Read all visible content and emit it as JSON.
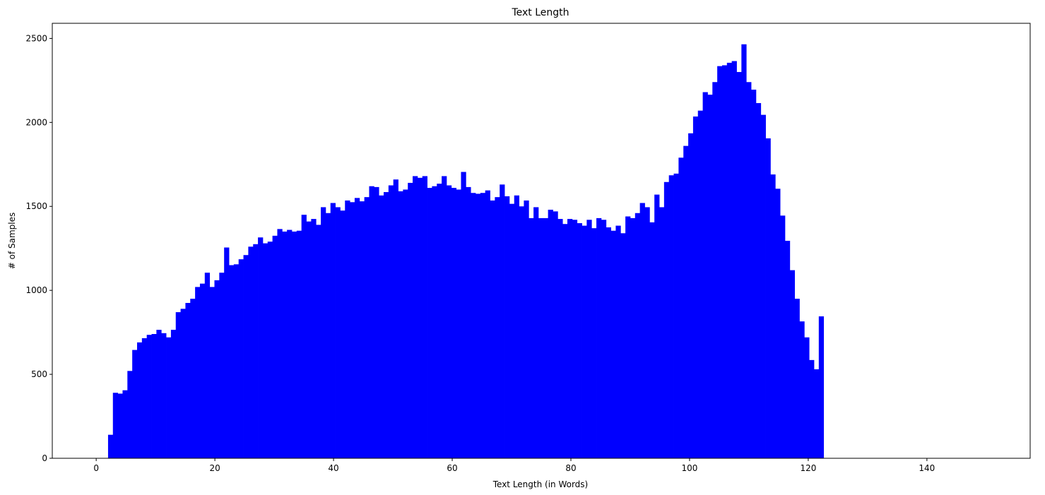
{
  "chart_data": {
    "type": "bar",
    "title": "Text Length",
    "xlabel": "Text Length (in Words)",
    "ylabel": "# of Samples",
    "xlim": [
      -7.4,
      157.4
    ],
    "ylim": [
      0,
      2590
    ],
    "xticks": [
      0,
      20,
      40,
      60,
      80,
      100,
      120,
      140
    ],
    "yticks": [
      0,
      500,
      1000,
      1500,
      2000,
      2500
    ],
    "grid": false,
    "bar_color": "#0000ff",
    "bins": {
      "start": 2,
      "width": 0.8148,
      "counts": [
        140,
        390,
        385,
        405,
        520,
        645,
        690,
        715,
        735,
        740,
        765,
        745,
        720,
        765,
        870,
        890,
        925,
        950,
        1020,
        1040,
        1105,
        1020,
        1060,
        1105,
        1255,
        1150,
        1155,
        1185,
        1210,
        1260,
        1275,
        1315,
        1280,
        1290,
        1325,
        1365,
        1350,
        1360,
        1350,
        1355,
        1450,
        1410,
        1425,
        1390,
        1495,
        1460,
        1520,
        1495,
        1475,
        1535,
        1525,
        1550,
        1530,
        1555,
        1620,
        1615,
        1565,
        1585,
        1625,
        1660,
        1590,
        1600,
        1640,
        1680,
        1670,
        1680,
        1610,
        1620,
        1635,
        1680,
        1625,
        1610,
        1600,
        1705,
        1615,
        1580,
        1575,
        1580,
        1595,
        1535,
        1555,
        1630,
        1560,
        1515,
        1565,
        1500,
        1535,
        1430,
        1495,
        1430,
        1430,
        1480,
        1470,
        1425,
        1395,
        1425,
        1420,
        1400,
        1385,
        1420,
        1370,
        1430,
        1420,
        1375,
        1355,
        1385,
        1340,
        1440,
        1430,
        1460,
        1520,
        1495,
        1405,
        1570,
        1495,
        1645,
        1685,
        1695,
        1790,
        1860,
        1935,
        2035,
        2070,
        2180,
        2165,
        2240,
        2335,
        2340,
        2355,
        2365,
        2300,
        2465,
        2240,
        2195,
        2115,
        2045,
        1905,
        1690,
        1605,
        1445,
        1295,
        1120,
        950,
        815,
        720,
        585,
        530,
        845
      ]
    }
  }
}
